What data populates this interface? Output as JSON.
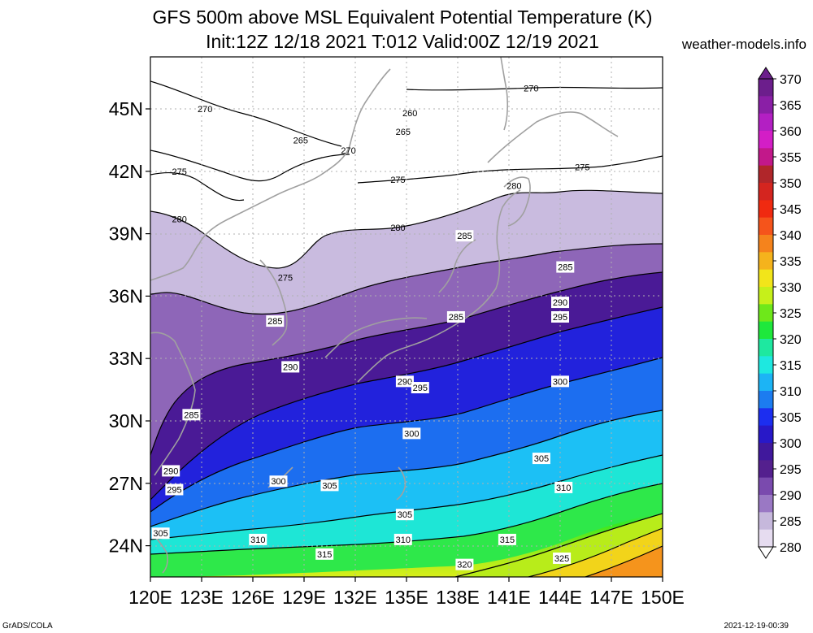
{
  "title": {
    "line1": "GFS 500m above MSL Equivalent Potential Temperature (K)",
    "line2": "Init:12Z 12/18 2021 T:012 Valid:00Z 12/19 2021"
  },
  "site_label": "weather-models.info",
  "footer_left": "GrADS/COLA",
  "footer_right": "2021-12-19-00:39",
  "map": {
    "lon_range": [
      120,
      150
    ],
    "lat_range": [
      22.5,
      47.5
    ],
    "x_ticks": [
      "120E",
      "123E",
      "126E",
      "129E",
      "132E",
      "135E",
      "138E",
      "141E",
      "144E",
      "147E",
      "150E"
    ],
    "x_tick_values": [
      120,
      123,
      126,
      129,
      132,
      135,
      138,
      141,
      144,
      147,
      150
    ],
    "y_ticks": [
      "45N",
      "42N",
      "39N",
      "36N",
      "33N",
      "30N",
      "27N",
      "24N"
    ],
    "y_tick_values": [
      45,
      42,
      39,
      36,
      33,
      30,
      27,
      24
    ],
    "contour_labels": [
      {
        "text": "270",
        "lon": 123.2,
        "lat": 45.0,
        "boxed": false
      },
      {
        "text": "265",
        "lon": 128.8,
        "lat": 43.5,
        "boxed": false
      },
      {
        "text": "270",
        "lon": 131.6,
        "lat": 43.0,
        "boxed": false
      },
      {
        "text": "260",
        "lon": 135.2,
        "lat": 44.8,
        "boxed": false
      },
      {
        "text": "265",
        "lon": 134.8,
        "lat": 43.9,
        "boxed": false
      },
      {
        "text": "270",
        "lon": 142.3,
        "lat": 46.0,
        "boxed": false
      },
      {
        "text": "275",
        "lon": 121.7,
        "lat": 42.0,
        "boxed": false
      },
      {
        "text": "275",
        "lon": 134.5,
        "lat": 41.6,
        "boxed": false
      },
      {
        "text": "275",
        "lon": 145.3,
        "lat": 42.2,
        "boxed": false
      },
      {
        "text": "280",
        "lon": 141.3,
        "lat": 41.3,
        "boxed": false
      },
      {
        "text": "280",
        "lon": 121.7,
        "lat": 39.7,
        "boxed": false
      },
      {
        "text": "280",
        "lon": 134.5,
        "lat": 39.3,
        "boxed": false
      },
      {
        "text": "275",
        "lon": 127.9,
        "lat": 36.9,
        "boxed": false
      },
      {
        "text": "285",
        "lon": 138.4,
        "lat": 38.9,
        "boxed": true
      },
      {
        "text": "285",
        "lon": 144.3,
        "lat": 37.4,
        "boxed": true
      },
      {
        "text": "285",
        "lon": 127.3,
        "lat": 34.8,
        "boxed": true
      },
      {
        "text": "285",
        "lon": 137.9,
        "lat": 35.0,
        "boxed": true
      },
      {
        "text": "290",
        "lon": 144.0,
        "lat": 35.7,
        "boxed": true
      },
      {
        "text": "295",
        "lon": 144.0,
        "lat": 35.0,
        "boxed": true
      },
      {
        "text": "290",
        "lon": 128.2,
        "lat": 32.6,
        "boxed": true
      },
      {
        "text": "290",
        "lon": 134.9,
        "lat": 31.9,
        "boxed": true
      },
      {
        "text": "295",
        "lon": 135.8,
        "lat": 31.6,
        "boxed": true
      },
      {
        "text": "300",
        "lon": 144.0,
        "lat": 31.9,
        "boxed": true
      },
      {
        "text": "285",
        "lon": 122.4,
        "lat": 30.3,
        "boxed": true
      },
      {
        "text": "300",
        "lon": 135.3,
        "lat": 29.4,
        "boxed": true
      },
      {
        "text": "290",
        "lon": 121.2,
        "lat": 27.6,
        "boxed": true
      },
      {
        "text": "295",
        "lon": 121.4,
        "lat": 26.7,
        "boxed": true
      },
      {
        "text": "300",
        "lon": 127.5,
        "lat": 27.1,
        "boxed": true
      },
      {
        "text": "305",
        "lon": 130.5,
        "lat": 26.9,
        "boxed": true
      },
      {
        "text": "305",
        "lon": 142.9,
        "lat": 28.2,
        "boxed": true
      },
      {
        "text": "310",
        "lon": 144.2,
        "lat": 26.8,
        "boxed": true
      },
      {
        "text": "305",
        "lon": 134.9,
        "lat": 25.5,
        "boxed": true
      },
      {
        "text": "305",
        "lon": 120.6,
        "lat": 24.6,
        "boxed": true
      },
      {
        "text": "310",
        "lon": 126.3,
        "lat": 24.3,
        "boxed": true
      },
      {
        "text": "310",
        "lon": 134.8,
        "lat": 24.3,
        "boxed": true
      },
      {
        "text": "315",
        "lon": 140.9,
        "lat": 24.3,
        "boxed": true
      },
      {
        "text": "315",
        "lon": 130.2,
        "lat": 23.6,
        "boxed": true
      },
      {
        "text": "325",
        "lon": 144.1,
        "lat": 23.4,
        "boxed": true
      },
      {
        "text": "320",
        "lon": 138.4,
        "lat": 23.1,
        "boxed": true
      }
    ]
  },
  "colorbar": {
    "labels": [
      "370",
      "365",
      "360",
      "355",
      "350",
      "345",
      "340",
      "335",
      "330",
      "325",
      "320",
      "315",
      "310",
      "305",
      "300",
      "295",
      "290",
      "285",
      "280"
    ],
    "colors": [
      "#6c1e8c",
      "#8a1fa6",
      "#b31fc3",
      "#d31ec6",
      "#c2188a",
      "#b0262a",
      "#d4251f",
      "#f02a10",
      "#f5541b",
      "#f5831c",
      "#f5b31c",
      "#f2e51a",
      "#c6f01a",
      "#6ee81a",
      "#1ee83c",
      "#1ee8a0",
      "#1ee8e0",
      "#1cb4f5",
      "#1c7cf0",
      "#1c2ef0",
      "#2818c8",
      "#40189c",
      "#54208e",
      "#7a4aae",
      "#9a78c4",
      "#c6b8dc",
      "#e6dcf0"
    ]
  }
}
